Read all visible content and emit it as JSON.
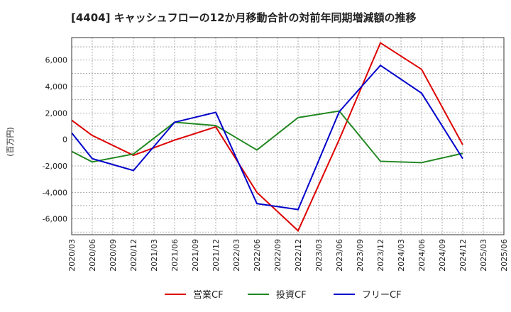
{
  "chart_data": {
    "type": "line",
    "title": "[4404]  キャッシュフローの12か月移動合計の対前年同期増減額の推移",
    "xlabel": "",
    "ylabel": "(百万円)",
    "categories": [
      "2020/03",
      "2020/06",
      "2020/09",
      "2020/12",
      "2021/03",
      "2021/06",
      "2021/09",
      "2021/12",
      "2022/03",
      "2022/06",
      "2022/09",
      "2022/12",
      "2023/03",
      "2023/06",
      "2023/09",
      "2023/12",
      "2024/03",
      "2024/06",
      "2024/09",
      "2024/12",
      "2025/03",
      "2025/06"
    ],
    "ylim": [
      -7200,
      7700
    ],
    "yticks": [
      6000,
      4000,
      2000,
      0,
      -2000,
      -4000,
      -6000
    ],
    "ytick_labels": [
      "6,000",
      "4,000",
      "2,000",
      "0",
      "-2,000",
      "-4,000",
      "-6,000"
    ],
    "grid": true,
    "legend_position": "bottom",
    "series": [
      {
        "name": "営業CF",
        "color": "#dd0000",
        "values": [
          1450,
          300,
          null,
          -1200,
          null,
          -50,
          null,
          950,
          null,
          -4000,
          null,
          -6900,
          null,
          0,
          null,
          7300,
          null,
          5300,
          null,
          -400,
          null,
          null
        ]
      },
      {
        "name": "投資CF",
        "color": "#228822",
        "values": [
          -900,
          -1700,
          null,
          -1100,
          null,
          1300,
          null,
          1050,
          null,
          -800,
          null,
          1650,
          null,
          2150,
          null,
          -1650,
          null,
          -1750,
          null,
          -1050,
          null,
          null
        ]
      },
      {
        "name": "フリーCF",
        "color": "#0000cc",
        "values": [
          500,
          -1450,
          null,
          -2350,
          null,
          1300,
          null,
          2050,
          null,
          -4850,
          null,
          -5300,
          null,
          2100,
          null,
          5600,
          null,
          3500,
          null,
          -1450,
          null,
          null
        ]
      }
    ]
  }
}
